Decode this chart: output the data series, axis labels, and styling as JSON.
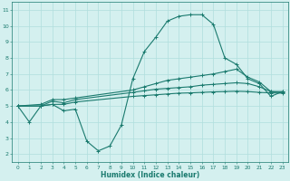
{
  "line1": {
    "x": [
      0,
      1,
      2,
      3,
      4,
      5,
      6,
      7,
      8,
      9,
      10,
      11,
      12,
      13,
      14,
      15,
      16,
      17,
      18,
      19,
      20,
      21,
      22,
      23
    ],
    "y": [
      5.0,
      4.0,
      5.0,
      5.1,
      4.7,
      4.8,
      2.8,
      2.2,
      2.5,
      3.8,
      6.7,
      8.4,
      9.3,
      10.3,
      10.6,
      10.7,
      10.7,
      10.1,
      8.0,
      7.6,
      6.7,
      6.4,
      5.6,
      5.9
    ]
  },
  "line2": {
    "x": [
      0,
      2,
      3,
      4,
      5,
      10,
      11,
      12,
      13,
      14,
      15,
      16,
      17,
      18,
      19,
      20,
      21,
      22,
      23
    ],
    "y": [
      5.0,
      5.1,
      5.4,
      5.4,
      5.5,
      6.0,
      6.2,
      6.4,
      6.6,
      6.7,
      6.8,
      6.9,
      7.0,
      7.15,
      7.3,
      6.8,
      6.5,
      5.9,
      5.9
    ]
  },
  "line3": {
    "x": [
      0,
      2,
      3,
      4,
      5,
      10,
      11,
      12,
      13,
      14,
      15,
      16,
      17,
      18,
      19,
      20,
      21,
      22,
      23
    ],
    "y": [
      5.0,
      5.0,
      5.3,
      5.2,
      5.4,
      5.85,
      5.95,
      6.05,
      6.1,
      6.15,
      6.2,
      6.3,
      6.35,
      6.4,
      6.45,
      6.4,
      6.2,
      5.9,
      5.85
    ]
  },
  "line4": {
    "x": [
      0,
      2,
      3,
      4,
      5,
      10,
      11,
      12,
      13,
      14,
      15,
      16,
      17,
      18,
      19,
      20,
      21,
      22,
      23
    ],
    "y": [
      5.0,
      5.0,
      5.1,
      5.1,
      5.25,
      5.6,
      5.65,
      5.7,
      5.75,
      5.8,
      5.82,
      5.85,
      5.88,
      5.9,
      5.92,
      5.9,
      5.85,
      5.82,
      5.8
    ]
  },
  "color": "#1a7a6e",
  "bg_color": "#d4f0ef",
  "grid_color": "#b0dedd",
  "xlabel": "Humidex (Indice chaleur)",
  "xlim": [
    -0.5,
    23.5
  ],
  "ylim": [
    1.5,
    11.5
  ],
  "yticks": [
    2,
    3,
    4,
    5,
    6,
    7,
    8,
    9,
    10,
    11
  ],
  "xticks": [
    0,
    1,
    2,
    3,
    4,
    5,
    6,
    7,
    8,
    9,
    10,
    11,
    12,
    13,
    14,
    15,
    16,
    17,
    18,
    19,
    20,
    21,
    22,
    23
  ]
}
